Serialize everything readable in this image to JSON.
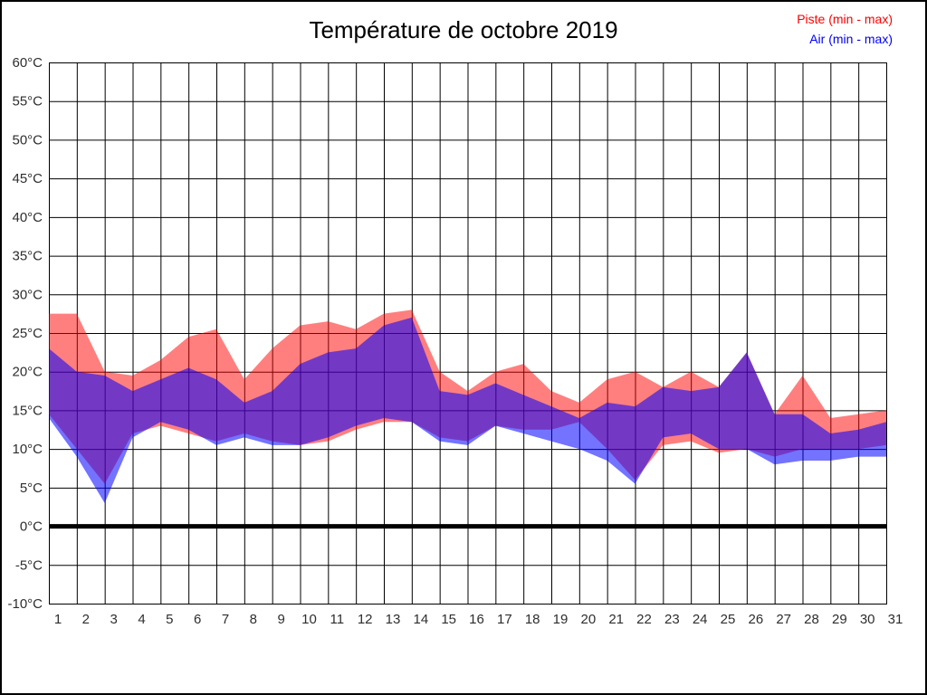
{
  "chart_data": {
    "type": "area",
    "title": "Température de octobre 2019",
    "subtitle": "",
    "xlabel": "",
    "ylabel": "",
    "x": [
      1,
      2,
      3,
      4,
      5,
      6,
      7,
      8,
      9,
      10,
      11,
      12,
      13,
      14,
      15,
      16,
      17,
      18,
      19,
      20,
      21,
      22,
      23,
      24,
      25,
      26,
      27,
      28,
      29,
      30,
      31
    ],
    "xtick_labels": [
      "1",
      "2",
      "3",
      "4",
      "5",
      "6",
      "7",
      "8",
      "9",
      "10",
      "11",
      "12",
      "13",
      "14",
      "15",
      "16",
      "17",
      "18",
      "19",
      "20",
      "21",
      "22",
      "23",
      "24",
      "25",
      "26",
      "27",
      "28",
      "29",
      "30",
      "31"
    ],
    "ylim": [
      -10,
      60
    ],
    "ytick_step": 5,
    "ytick_values": [
      60,
      55,
      50,
      45,
      40,
      35,
      30,
      25,
      20,
      15,
      10,
      5,
      0,
      -5,
      -10
    ],
    "ytick_labels": [
      "60°C",
      "55°C",
      "50°C",
      "45°C",
      "40°C",
      "35°C",
      "30°C",
      "25°C",
      "20°C",
      "15°C",
      "10°C",
      "5°C",
      "0°C",
      "-5°C",
      "-10°C"
    ],
    "grid": true,
    "grid_color": "#000000",
    "zero_line": {
      "value": 0,
      "color": "#000000",
      "width": 5
    },
    "legend_position": "top-right",
    "series": [
      {
        "name": "Piste (min - max)",
        "color": "#ff0000",
        "fill_opacity": 0.5,
        "min": [
          14.5,
          10,
          5.5,
          12,
          13,
          12,
          11,
          12,
          11,
          10.5,
          11,
          12.5,
          13.5,
          13.5,
          11.5,
          11,
          13,
          12.5,
          12.5,
          13.5,
          10,
          6,
          10.5,
          11,
          9.5,
          10,
          9,
          10,
          10,
          10,
          10.5
        ],
        "max": [
          27.5,
          27.5,
          20,
          19.5,
          21.5,
          24.5,
          25.5,
          19,
          23,
          26,
          26.5,
          25.5,
          27.5,
          28,
          20,
          17.5,
          20,
          21,
          17.5,
          16,
          19,
          20,
          18,
          20,
          18,
          22.5,
          14.5,
          19.5,
          14,
          14.5,
          15
        ]
      },
      {
        "name": "Air (min - max)",
        "color": "#0000ff",
        "fill_opacity": 0.55,
        "min": [
          14,
          9,
          3,
          11.5,
          13.5,
          12.5,
          10.5,
          11.5,
          10.5,
          10.5,
          11.5,
          13,
          14,
          13.5,
          11,
          10.5,
          13,
          12,
          11,
          10,
          8.5,
          5.5,
          11.5,
          12,
          10,
          10,
          8,
          8.5,
          8.5,
          9,
          9
        ],
        "max": [
          23,
          20,
          19.5,
          17.5,
          19,
          20.5,
          19,
          16,
          17.5,
          21,
          22.5,
          23,
          26,
          27,
          17.5,
          17,
          18.5,
          17,
          15.5,
          14,
          16,
          15.5,
          18,
          17.5,
          18,
          22.5,
          14.5,
          14.5,
          12,
          12.5,
          13.5
        ]
      }
    ]
  }
}
